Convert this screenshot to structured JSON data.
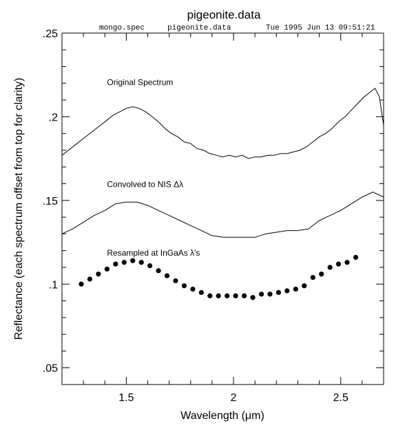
{
  "chart_data": {
    "type": "scatter",
    "title": "pigeonite.data",
    "subtitle": {
      "left": "mongo.spec",
      "middle": "pigeonite.data",
      "right": "Tue 1995 Jun 13 09:51:21"
    },
    "xlabel": "Wavelength (μm)",
    "ylabel": "Reflectance (each spectrum offset from top for clarity)",
    "xlim": [
      1.2,
      2.7
    ],
    "ylim": [
      0.04,
      0.25
    ],
    "x_major_ticks": [
      1.5,
      2,
      2.5
    ],
    "x_tick_labels": [
      "1.5",
      "2",
      "2.5"
    ],
    "x_minor_step": 0.1,
    "y_major_ticks": [
      0.05,
      0.1,
      0.15,
      0.2,
      0.25
    ],
    "y_tick_labels": [
      ".05",
      ".1",
      ".15",
      ".2",
      ".25"
    ],
    "y_minor_step": 0.01,
    "grid": false,
    "annotations": [
      {
        "text": "Original Spectrum",
        "x": 1.41,
        "y": 0.219
      },
      {
        "text": "Convolved to NIS Δλ",
        "x": 1.41,
        "y": 0.158
      },
      {
        "text": "Resampled at InGaAs λ's",
        "x": 1.41,
        "y": 0.117
      }
    ],
    "series": [
      {
        "style": "line",
        "x": [
          1.2,
          1.23,
          1.26,
          1.29,
          1.32,
          1.35,
          1.38,
          1.41,
          1.44,
          1.47,
          1.5,
          1.53,
          1.56,
          1.59,
          1.62,
          1.65,
          1.68,
          1.71,
          1.74,
          1.77,
          1.8,
          1.83,
          1.86,
          1.89,
          1.92,
          1.95,
          1.98,
          2.01,
          2.04,
          2.07,
          2.1,
          2.13,
          2.16,
          2.19,
          2.22,
          2.25,
          2.28,
          2.31,
          2.34,
          2.37,
          2.4,
          2.43,
          2.46,
          2.49,
          2.52,
          2.55,
          2.58,
          2.61,
          2.64,
          2.66,
          2.68,
          2.7
        ],
        "y": [
          0.177,
          0.18,
          0.183,
          0.186,
          0.189,
          0.192,
          0.195,
          0.198,
          0.201,
          0.203,
          0.205,
          0.206,
          0.205,
          0.203,
          0.2,
          0.197,
          0.193,
          0.19,
          0.188,
          0.185,
          0.184,
          0.181,
          0.18,
          0.178,
          0.177,
          0.176,
          0.177,
          0.176,
          0.177,
          0.175,
          0.176,
          0.176,
          0.177,
          0.177,
          0.178,
          0.178,
          0.179,
          0.18,
          0.182,
          0.185,
          0.188,
          0.19,
          0.193,
          0.197,
          0.2,
          0.204,
          0.208,
          0.212,
          0.215,
          0.217,
          0.212,
          0.195
        ]
      },
      {
        "style": "line",
        "x": [
          1.2,
          1.25,
          1.3,
          1.35,
          1.4,
          1.45,
          1.5,
          1.55,
          1.6,
          1.65,
          1.7,
          1.75,
          1.8,
          1.85,
          1.9,
          1.95,
          2.0,
          2.05,
          2.1,
          2.15,
          2.2,
          2.25,
          2.3,
          2.35,
          2.4,
          2.45,
          2.5,
          2.55,
          2.6,
          2.65,
          2.7
        ],
        "y": [
          0.13,
          0.133,
          0.137,
          0.141,
          0.144,
          0.148,
          0.149,
          0.149,
          0.147,
          0.144,
          0.141,
          0.138,
          0.135,
          0.132,
          0.129,
          0.128,
          0.128,
          0.128,
          0.128,
          0.13,
          0.131,
          0.132,
          0.132,
          0.133,
          0.138,
          0.141,
          0.144,
          0.148,
          0.152,
          0.155,
          0.152
        ]
      },
      {
        "style": "markers",
        "x": [
          1.29,
          1.33,
          1.37,
          1.41,
          1.45,
          1.49,
          1.53,
          1.57,
          1.61,
          1.65,
          1.69,
          1.73,
          1.77,
          1.81,
          1.85,
          1.89,
          1.93,
          1.97,
          2.01,
          2.05,
          2.09,
          2.13,
          2.17,
          2.21,
          2.25,
          2.29,
          2.33,
          2.37,
          2.41,
          2.45,
          2.49,
          2.53,
          2.57
        ],
        "y": [
          0.1,
          0.103,
          0.106,
          0.109,
          0.112,
          0.113,
          0.114,
          0.113,
          0.111,
          0.108,
          0.105,
          0.102,
          0.099,
          0.097,
          0.095,
          0.093,
          0.093,
          0.093,
          0.093,
          0.093,
          0.092,
          0.094,
          0.094,
          0.095,
          0.096,
          0.097,
          0.099,
          0.104,
          0.106,
          0.11,
          0.112,
          0.113,
          0.116
        ]
      }
    ]
  }
}
